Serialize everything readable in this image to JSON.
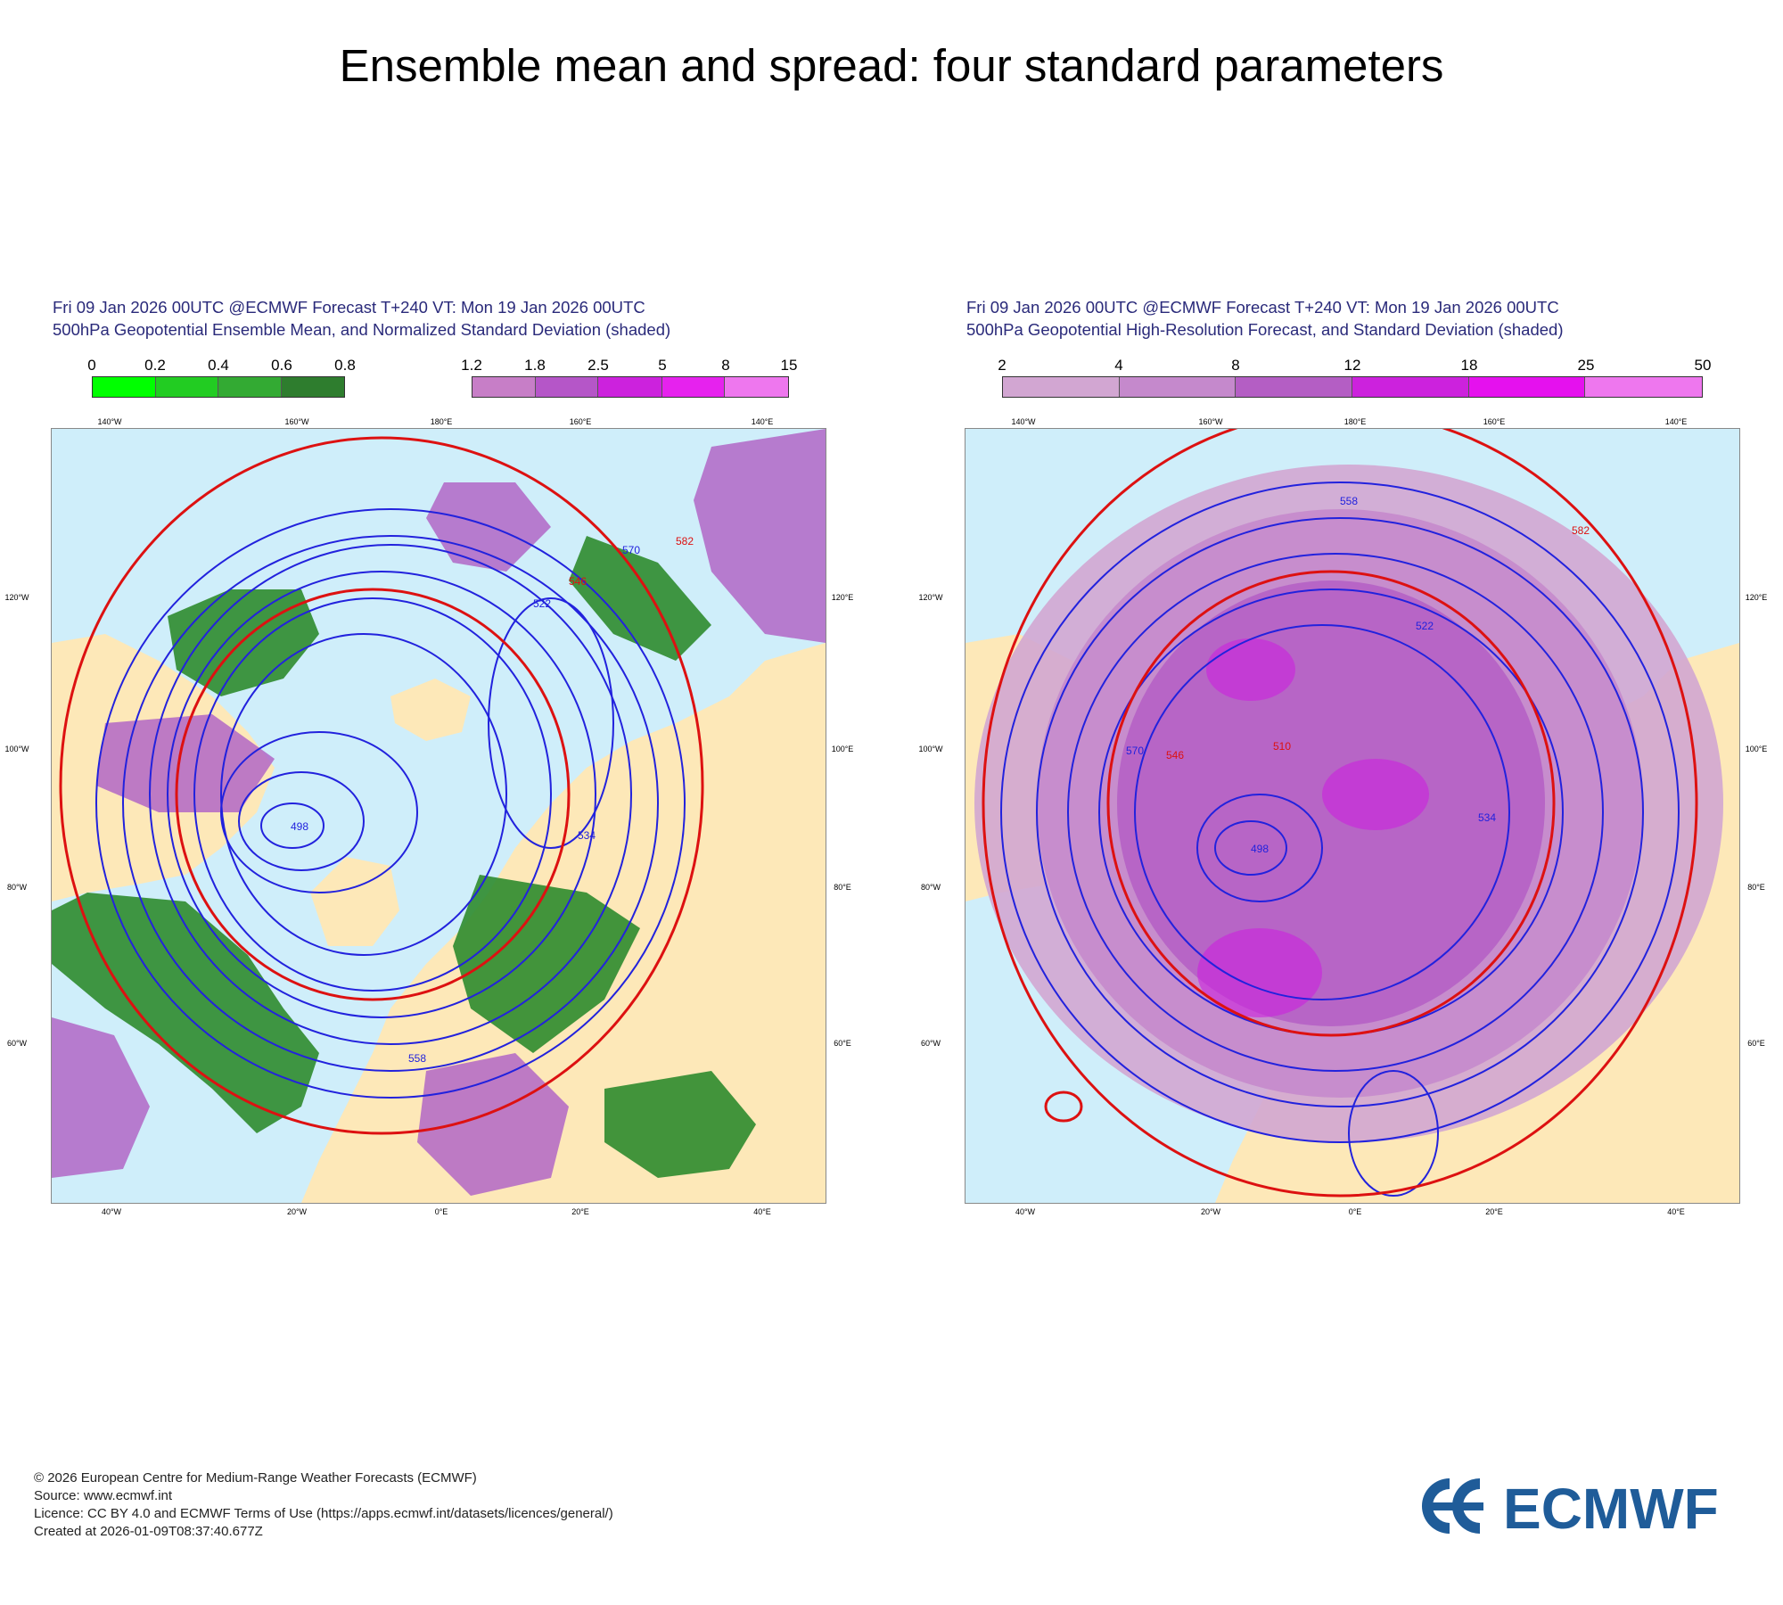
{
  "title": "Ensemble mean and spread: four standard parameters",
  "panels": [
    {
      "title_line1": "Fri 09 Jan 2026 00UTC @ECMWF Forecast T+240 VT: Mon 19 Jan 2026 00UTC",
      "title_line2": "500hPa Geopotential Ensemble Mean, and Normalized Standard Deviation (shaded)",
      "colorbars": [
        {
          "ticks": [
            "0",
            "0.2",
            "0.4",
            "0.6",
            "0.8"
          ],
          "colors": [
            "#00ff00",
            "#22cc22",
            "#33aa33",
            "#2e7d2e"
          ]
        },
        {
          "ticks": [
            "1.2",
            "1.8",
            "2.5",
            "5",
            "8",
            "15"
          ],
          "colors": [
            "#c77ec7",
            "#b556c8",
            "#cc22dd",
            "#e622ee",
            "#ee77ee"
          ]
        }
      ],
      "top_lon_labels": [
        "140°W",
        "160°W",
        "180°E",
        "160°E",
        "140°E"
      ],
      "bottom_lon_labels": [
        "40°W",
        "20°W",
        "0°E",
        "20°E",
        "40°E"
      ],
      "left_lon_labels": [
        "120°W",
        "100°W",
        "80°W",
        "60°W"
      ],
      "right_lon_labels": [
        "120°E",
        "100°E",
        "80°E",
        "60°E"
      ],
      "contour_labels": [
        "498",
        "522",
        "534",
        "546",
        "558",
        "570",
        "582"
      ]
    },
    {
      "title_line1": "Fri 09 Jan 2026 00UTC @ECMWF Forecast T+240 VT: Mon 19 Jan 2026 00UTC",
      "title_line2": "500hPa Geopotential High-Resolution Forecast, and Standard Deviation (shaded)",
      "colorbars": [
        {
          "ticks": [
            "2",
            "4",
            "8",
            "12",
            "18",
            "25",
            "50"
          ],
          "colors": [
            "#d2a6d2",
            "#c589cc",
            "#b45ec4",
            "#cc22dd",
            "#e511ee",
            "#ee77ee"
          ]
        }
      ],
      "top_lon_labels": [
        "140°W",
        "160°W",
        "180°E",
        "160°E",
        "140°E"
      ],
      "bottom_lon_labels": [
        "40°W",
        "20°W",
        "0°E",
        "20°E",
        "40°E"
      ],
      "left_lon_labels": [
        "120°W",
        "100°W",
        "80°W",
        "60°W"
      ],
      "right_lon_labels": [
        "120°E",
        "100°E",
        "80°E",
        "60°E"
      ],
      "contour_labels": [
        "498",
        "510",
        "522",
        "534",
        "546",
        "558",
        "570",
        "582"
      ]
    }
  ],
  "footer": {
    "copyright": "© 2026 European Centre for Medium-Range Weather Forecasts (ECMWF)",
    "source": "Source: www.ecmwf.int",
    "licence": "Licence: CC BY 4.0 and ECMWF Terms of Use (https://apps.ecmwf.int/datasets/licences/general/)",
    "created": "Created at 2026-01-09T08:37:40.677Z"
  },
  "logo_text": "ECMWF",
  "colors": {
    "ocean": "#cfeefa",
    "land": "#fde8b8",
    "contour_blue": "#2222dd",
    "contour_red": "#dd1111"
  }
}
